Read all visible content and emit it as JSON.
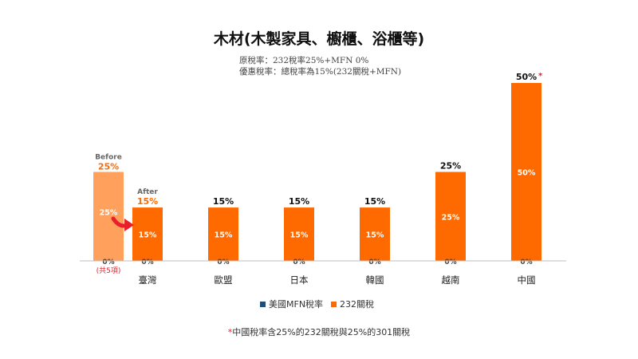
{
  "header": {
    "title": "木材(木製家具、櫥櫃、浴櫃等)",
    "subtitle_line1": "原稅率：232稅率25%+MFN 0%",
    "subtitle_line2": "優惠稅率：總稅率為15%(232關稅+MFN)"
  },
  "legend": {
    "mfn_label": "美國MFN稅率",
    "s232_label": "232關稅",
    "mfn_color": "#1f4e79",
    "s232_color": "#ff6a00"
  },
  "footnote": {
    "star": "*",
    "text": "中國稅率含25%的232關稅與25%的301關稅"
  },
  "colors": {
    "bar_main": "#ff6a00",
    "bar_before": "#ffa05c",
    "arrow": "#e8202a",
    "axis": "#bfbfbf",
    "label_dark": "#111111",
    "label_orange": "#ff6a00",
    "label_gray": "#666666"
  },
  "chart_data": {
    "type": "bar",
    "title": "木材(木製家具、櫥櫃、浴櫃等)",
    "categories": [
      "臺灣",
      "歐盟",
      "日本",
      "韓國",
      "越南",
      "中國"
    ],
    "series": [
      {
        "name": "美國MFN稅率",
        "values": [
          0,
          0,
          0,
          0,
          0,
          0
        ]
      },
      {
        "name": "232關稅",
        "values": [
          15,
          15,
          15,
          15,
          25,
          50
        ]
      }
    ],
    "top_labels": [
      "15%",
      "15%",
      "15%",
      "15%",
      "25%",
      "50%"
    ],
    "inner_labels": [
      "15%",
      "15%",
      "15%",
      "15%",
      "25%",
      "50%"
    ],
    "base_labels": [
      "0%",
      "0%",
      "0%",
      "0%",
      "0%",
      "0%"
    ],
    "taiwan_before": {
      "label": "Before",
      "value": 25,
      "top_label": "25%",
      "inner_label": "25%",
      "base_label": "0%",
      "note": "(共5項)"
    },
    "taiwan_after_label": "After",
    "china_marker": "*",
    "ylim": [
      0,
      50
    ],
    "grid": false
  }
}
